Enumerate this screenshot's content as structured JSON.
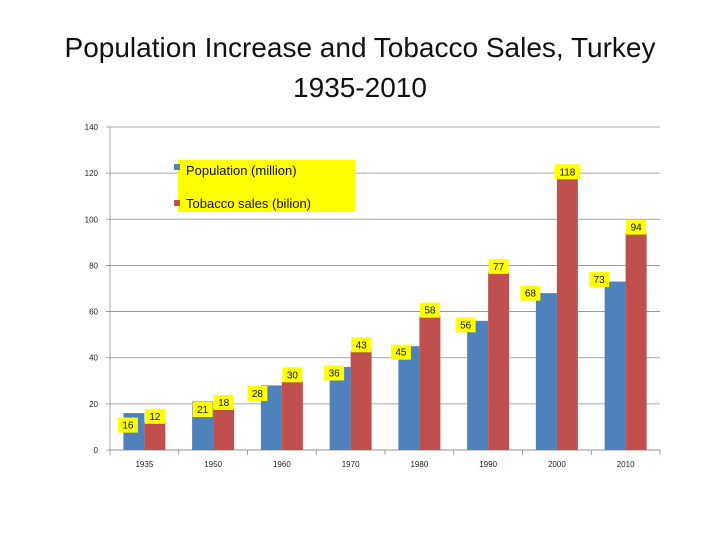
{
  "title_line1": "Population Increase and Tobacco Sales, Turkey",
  "title_line2": "1935-2010",
  "chart_data": {
    "type": "bar",
    "title": "Population Increase and Tobacco Sales, Turkey 1935-2010",
    "categories": [
      "1935",
      "1950",
      "1960",
      "1970",
      "1980",
      "1990",
      "2000",
      "2010"
    ],
    "series": [
      {
        "name": "Population (million)",
        "values": [
          16,
          21,
          28,
          36,
          45,
          56,
          68,
          73
        ],
        "color": "#4f81bd"
      },
      {
        "name": "Tobacco sales (bilion)",
        "values": [
          12,
          18,
          30,
          43,
          58,
          77,
          118,
          94
        ],
        "color": "#c0504d"
      }
    ],
    "data_labels": {
      "population": [
        "16",
        "21",
        "28",
        "36",
        "45",
        "56",
        "68",
        "73"
      ],
      "tobacco": [
        "12",
        "18",
        "30",
        "43",
        "58",
        "77",
        "118",
        "94"
      ]
    },
    "yticks": [
      "0",
      "20",
      "40",
      "60",
      "80",
      "100",
      "120",
      "140"
    ],
    "ylim": [
      0,
      140
    ],
    "grid": true,
    "legend": "top-left",
    "label_box_color": "#ffff00"
  }
}
